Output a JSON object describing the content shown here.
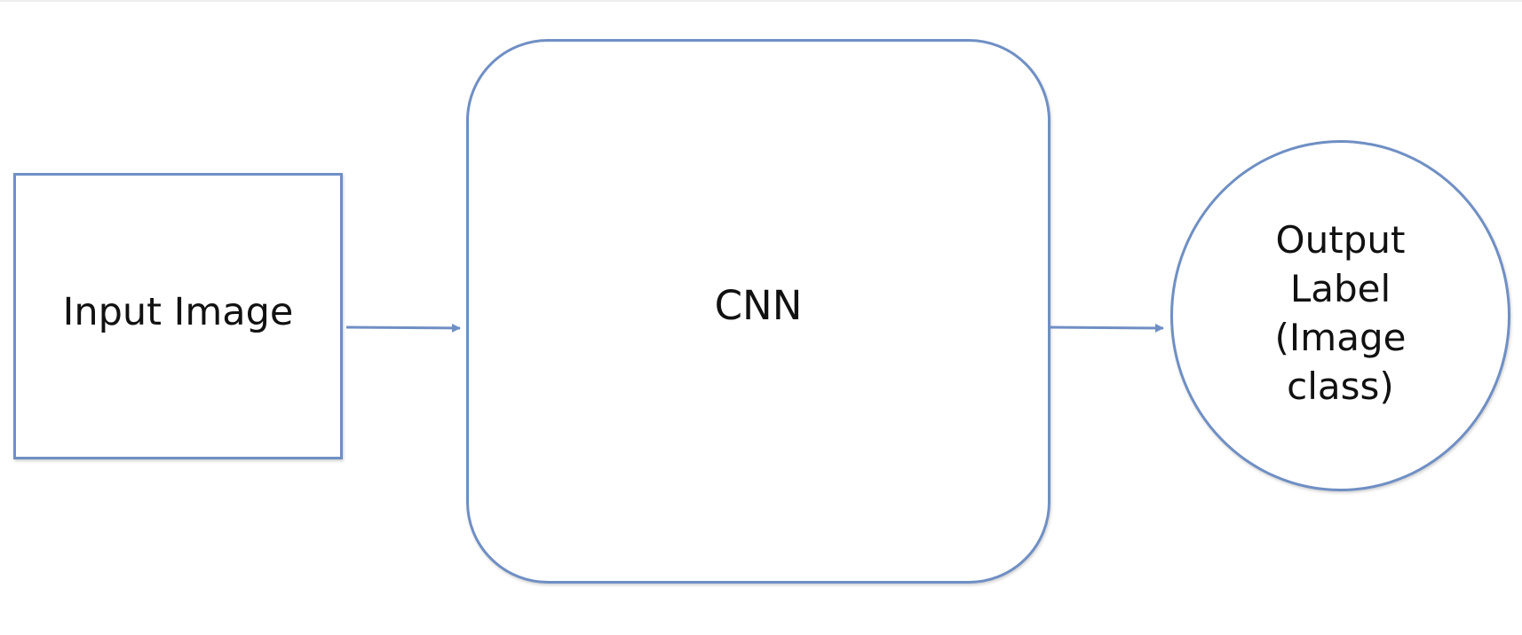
{
  "diagram": {
    "nodes": {
      "input": {
        "label": "Input Image"
      },
      "cnn": {
        "label": "CNN"
      },
      "output": {
        "label_lines": [
          "Output",
          "Label",
          "(Image",
          "class)"
        ]
      }
    },
    "edges": [
      {
        "from": "input",
        "to": "cnn"
      },
      {
        "from": "cnn",
        "to": "output"
      }
    ],
    "colors": {
      "stroke": "#6f8fc4",
      "text": "#111111",
      "background": "#ffffff"
    }
  }
}
